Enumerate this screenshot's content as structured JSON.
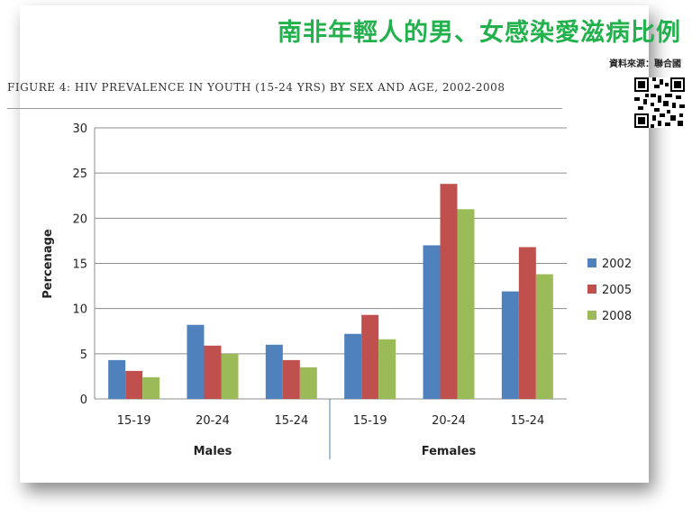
{
  "header": {
    "title_zh": "南非年輕人的男、女感染愛滋病比例",
    "source": "資料來源：聯合國",
    "figure_title": "FIGURE 4: HIV PREVALENCE IN YOUTH (15-24 YRS) BY SEX AND AGE, 2002-2008"
  },
  "qr_icon": "qr-code-icon",
  "chart_data": {
    "type": "bar",
    "title": "FIGURE 4: HIV PREVALENCE IN YOUTH (15-24 YRS) BY SEX AND AGE, 2002-2008",
    "categories": [
      "15-19",
      "20-24",
      "15-24",
      "15-19",
      "20-24",
      "15-24"
    ],
    "groups": [
      {
        "label": "Males",
        "categories": [
          0,
          1,
          2
        ]
      },
      {
        "label": "Females",
        "categories": [
          3,
          4,
          5
        ]
      }
    ],
    "ylabel": "Percenage",
    "ylim": [
      0,
      30
    ],
    "yticks": [
      0,
      5,
      10,
      15,
      20,
      25,
      30
    ],
    "grid": true,
    "legend": "right",
    "series": [
      {
        "name": "2002",
        "color": "#4f81bd",
        "values": [
          4.3,
          8.2,
          6.0,
          7.2,
          17.0,
          11.9
        ]
      },
      {
        "name": "2005",
        "color": "#c0504d",
        "values": [
          3.1,
          5.9,
          4.3,
          9.3,
          23.8,
          16.8
        ]
      },
      {
        "name": "2008",
        "color": "#9bbb59",
        "values": [
          2.4,
          5.0,
          3.5,
          6.6,
          21.0,
          13.8
        ]
      }
    ]
  }
}
